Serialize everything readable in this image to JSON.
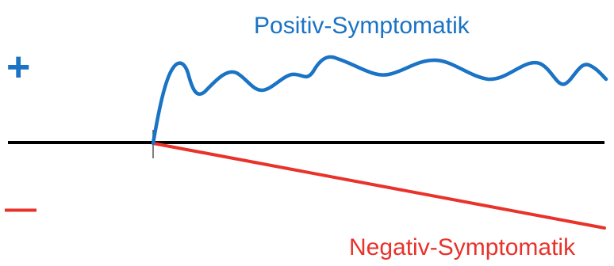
{
  "diagram": {
    "positive_label": "Positiv-Symptomatik",
    "negative_label": "Negativ-Symptomatik",
    "plus_sign": "+",
    "minus_sign": "—",
    "colors": {
      "positive": "#1a73c4",
      "negative": "#e8322a",
      "baseline": "#000000",
      "marker": "#555555"
    }
  }
}
